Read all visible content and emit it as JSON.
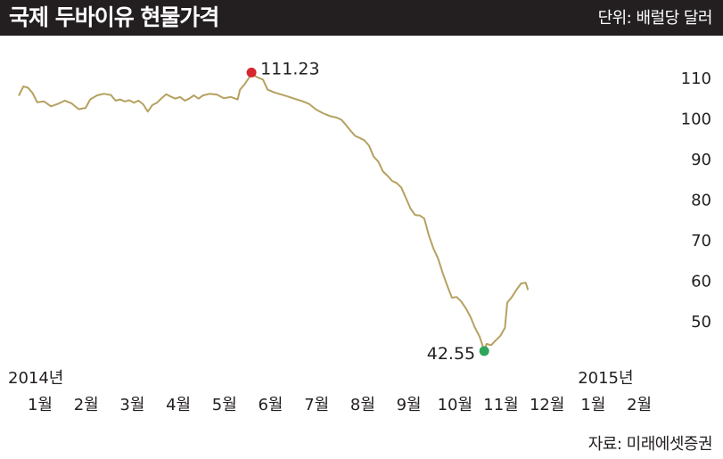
{
  "header": {
    "title": "국제 두바이유 현물가격",
    "unit": "단위: 배럴당 달러"
  },
  "source": "자료: 미래에셋증권",
  "colors": {
    "header_bg": "#231f20",
    "line": "#b5a160",
    "high_marker": "#d7282f",
    "low_marker": "#2ca65a",
    "text": "#231f20"
  },
  "chart_data": {
    "type": "line",
    "title": "국제 두바이유 현물가격",
    "ylabel": "단위: 배럴당 달러",
    "ylim": [
      40,
      113
    ],
    "yticks": [
      50,
      60,
      70,
      80,
      90,
      100,
      110
    ],
    "grid": false,
    "months": [
      "1월",
      "2월",
      "3월",
      "4월",
      "5월",
      "6월",
      "7월",
      "8월",
      "9월",
      "10월",
      "11월",
      "12월",
      "1월",
      "2월"
    ],
    "year_labels": [
      {
        "text": "2014년",
        "month_index": 0
      },
      {
        "text": "2015년",
        "month_index": 12
      }
    ],
    "series": [
      {
        "points": [
          [
            0.0,
            105.5
          ],
          [
            0.1,
            107.8
          ],
          [
            0.2,
            107.5
          ],
          [
            0.3,
            106.2
          ],
          [
            0.4,
            103.9
          ],
          [
            0.55,
            104.1
          ],
          [
            0.7,
            102.9
          ],
          [
            0.85,
            103.5
          ],
          [
            1.0,
            104.3
          ],
          [
            1.15,
            103.6
          ],
          [
            1.3,
            102.2
          ],
          [
            1.45,
            102.5
          ],
          [
            1.55,
            104.6
          ],
          [
            1.7,
            105.6
          ],
          [
            1.85,
            106.0
          ],
          [
            2.0,
            105.7
          ],
          [
            2.1,
            104.3
          ],
          [
            2.2,
            104.6
          ],
          [
            2.3,
            104.1
          ],
          [
            2.4,
            104.4
          ],
          [
            2.5,
            103.8
          ],
          [
            2.6,
            104.3
          ],
          [
            2.7,
            103.4
          ],
          [
            2.8,
            101.6
          ],
          [
            2.9,
            103.2
          ],
          [
            3.0,
            103.8
          ],
          [
            3.1,
            104.9
          ],
          [
            3.2,
            105.9
          ],
          [
            3.3,
            105.3
          ],
          [
            3.4,
            104.8
          ],
          [
            3.5,
            105.2
          ],
          [
            3.6,
            104.3
          ],
          [
            3.7,
            104.8
          ],
          [
            3.8,
            105.6
          ],
          [
            3.9,
            104.8
          ],
          [
            4.0,
            105.6
          ],
          [
            4.15,
            106.0
          ],
          [
            4.3,
            105.8
          ],
          [
            4.45,
            104.9
          ],
          [
            4.6,
            105.2
          ],
          [
            4.75,
            104.6
          ],
          [
            4.8,
            107.0
          ],
          [
            4.9,
            108.3
          ],
          [
            5.0,
            110.0
          ],
          [
            5.05,
            111.23
          ],
          [
            5.15,
            110.2
          ],
          [
            5.3,
            109.5
          ],
          [
            5.4,
            107.0
          ],
          [
            5.55,
            106.3
          ],
          [
            5.7,
            105.8
          ],
          [
            5.85,
            105.3
          ],
          [
            6.0,
            104.7
          ],
          [
            6.15,
            104.2
          ],
          [
            6.3,
            103.5
          ],
          [
            6.45,
            102.1
          ],
          [
            6.6,
            101.2
          ],
          [
            6.75,
            100.5
          ],
          [
            6.9,
            100.1
          ],
          [
            7.0,
            99.6
          ],
          [
            7.1,
            98.3
          ],
          [
            7.2,
            96.9
          ],
          [
            7.3,
            95.6
          ],
          [
            7.4,
            95.1
          ],
          [
            7.5,
            94.5
          ],
          [
            7.6,
            93.2
          ],
          [
            7.7,
            90.5
          ],
          [
            7.8,
            89.3
          ],
          [
            7.9,
            86.9
          ],
          [
            8.0,
            85.8
          ],
          [
            8.1,
            84.5
          ],
          [
            8.2,
            84.0
          ],
          [
            8.3,
            82.9
          ],
          [
            8.4,
            80.3
          ],
          [
            8.5,
            77.7
          ],
          [
            8.6,
            76.1
          ],
          [
            8.7,
            76.0
          ],
          [
            8.8,
            75.2
          ],
          [
            8.9,
            71.0
          ],
          [
            9.0,
            67.8
          ],
          [
            9.1,
            65.3
          ],
          [
            9.2,
            61.8
          ],
          [
            9.3,
            58.6
          ],
          [
            9.4,
            55.7
          ],
          [
            9.5,
            55.9
          ],
          [
            9.6,
            54.8
          ],
          [
            9.7,
            53.1
          ],
          [
            9.8,
            51.0
          ],
          [
            9.9,
            48.3
          ],
          [
            10.0,
            46.1
          ],
          [
            10.05,
            44.4
          ],
          [
            10.1,
            42.55
          ],
          [
            10.15,
            44.3
          ],
          [
            10.25,
            44.0
          ],
          [
            10.35,
            45.2
          ],
          [
            10.45,
            46.3
          ],
          [
            10.55,
            48.3
          ],
          [
            10.6,
            54.5
          ],
          [
            10.7,
            55.9
          ],
          [
            10.8,
            57.7
          ],
          [
            10.9,
            59.2
          ],
          [
            11.0,
            59.4
          ],
          [
            11.05,
            57.6
          ]
        ]
      }
    ],
    "annotations": [
      {
        "label": "111.23",
        "x": 5.05,
        "y": 111.23,
        "kind": "high"
      },
      {
        "label": "42.55",
        "x": 10.1,
        "y": 42.55,
        "kind": "low"
      }
    ]
  }
}
